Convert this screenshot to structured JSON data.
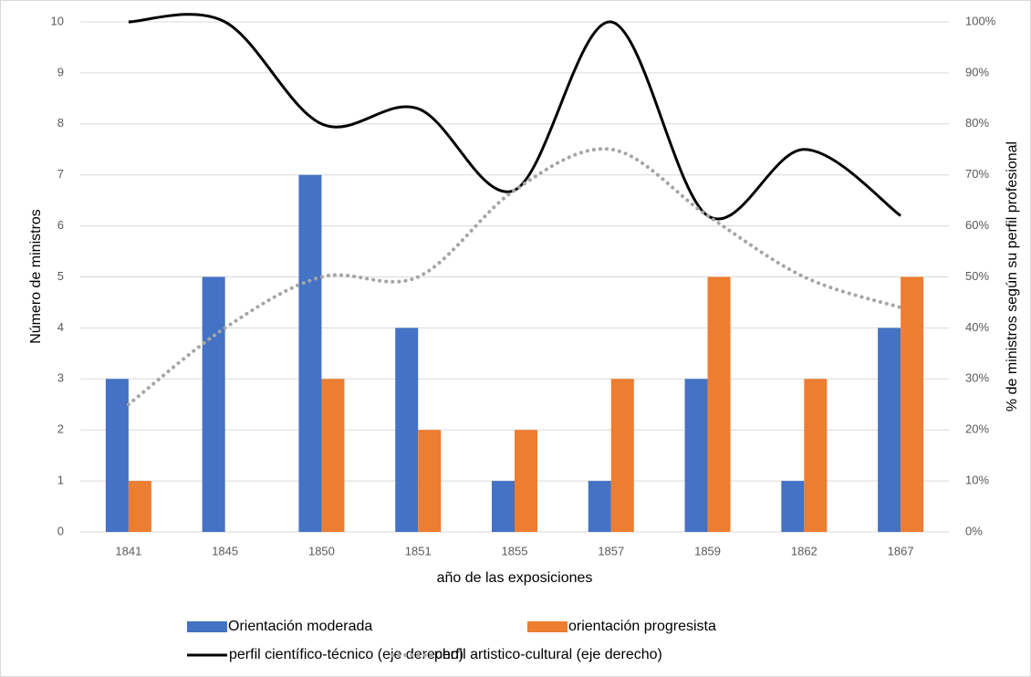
{
  "chart_data": {
    "type": "bar",
    "categories": [
      "1841",
      "1845",
      "1850",
      "1851",
      "1855",
      "1857",
      "1859",
      "1862",
      "1867"
    ],
    "series": [
      {
        "name": "Orientación moderada",
        "type": "bar",
        "color": "#4472c4",
        "values": [
          3,
          5,
          7,
          4,
          1,
          1,
          3,
          1,
          4
        ]
      },
      {
        "name": "orientación progresista",
        "type": "bar",
        "color": "#ed7d31",
        "values": [
          1,
          0,
          3,
          2,
          2,
          3,
          5,
          3,
          5
        ]
      },
      {
        "name": "perfil científico-técnico (eje derecho)",
        "type": "line",
        "axis": "y2",
        "color": "#000000",
        "dash": "solid",
        "smooth": true,
        "values": [
          100,
          100,
          80,
          83,
          67,
          100,
          62,
          75,
          62
        ]
      },
      {
        "name": "perfil artistico-cultural (eje derecho)",
        "type": "line",
        "axis": "y2",
        "color": "#a5a5a5",
        "dash": "dot",
        "smooth": true,
        "values": [
          25,
          40,
          50,
          50,
          67,
          75,
          62,
          50,
          44
        ]
      }
    ],
    "x_label": "año de las exposiciones",
    "y_label": "Número de ministros",
    "y2_label": "% de ministros según  su perfil  profesional",
    "ylim": [
      0,
      10
    ],
    "yticks": [
      0,
      1,
      2,
      3,
      4,
      5,
      6,
      7,
      8,
      9,
      10
    ],
    "y2lim": [
      0,
      100
    ],
    "y2ticks": [
      {
        "value": 0,
        "label": "0%"
      },
      {
        "value": 10,
        "label": "10%"
      },
      {
        "value": 20,
        "label": "20%"
      },
      {
        "value": 30,
        "label": "30%"
      },
      {
        "value": 40,
        "label": "40%"
      },
      {
        "value": 50,
        "label": "50%"
      },
      {
        "value": 60,
        "label": "60%"
      },
      {
        "value": 70,
        "label": "70%"
      },
      {
        "value": 80,
        "label": "80%"
      },
      {
        "value": 90,
        "label": "90%"
      },
      {
        "value": 100,
        "label": "100%"
      }
    ],
    "grid": true,
    "legend": "bottom"
  }
}
